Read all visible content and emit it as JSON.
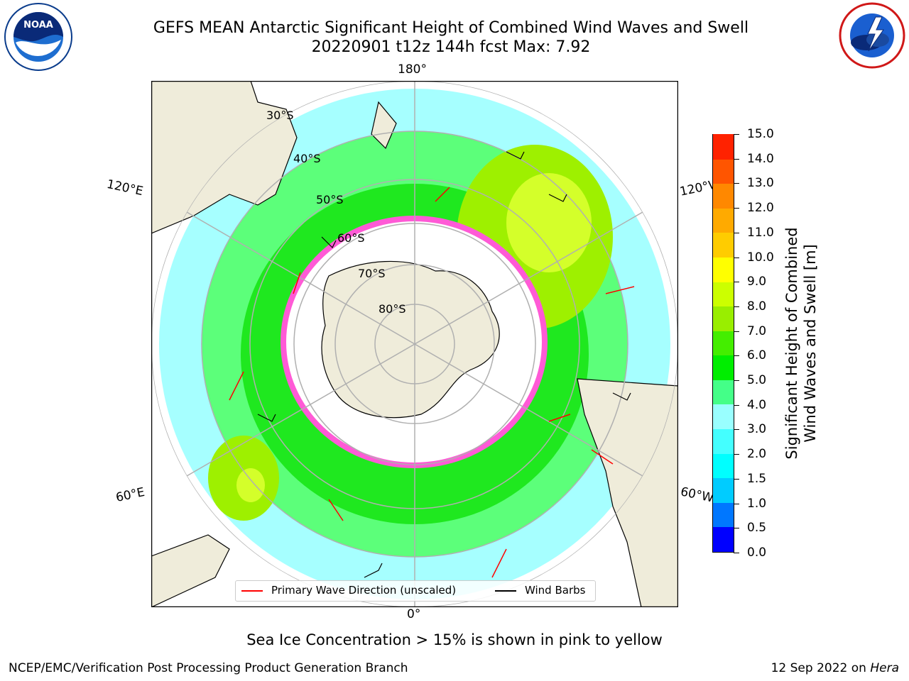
{
  "title": {
    "line1": "GEFS MEAN Antarctic Significant Height of Combined Wind Waves and Swell",
    "line2": "20220901 t12z 144h fcst   Max: 7.92"
  },
  "logos": {
    "left": "noaa-logo",
    "right": "nws-logo"
  },
  "map": {
    "projection": "south-polar-stereographic",
    "longitude_labels": [
      "180°",
      "120°E",
      "120°W",
      "60°E",
      "60°W",
      "0°"
    ],
    "latitude_labels": [
      "30°S",
      "40°S",
      "50°S",
      "60°S",
      "70°S",
      "80°S"
    ],
    "colors": {
      "land": "#efecda",
      "sea_ice": "#ffffff",
      "ice_edge": "#ff33cc",
      "graticule": "#b0b0b0",
      "wave_direction": "#ff0000",
      "wind_barb": "#000000"
    }
  },
  "colorbar": {
    "title_line1": "Significant Height of Combined",
    "title_line2": "Wind Waves and Swell [m]",
    "tick_labels": [
      "0.0",
      "0.5",
      "1.0",
      "1.5",
      "2.0",
      "3.0",
      "4.0",
      "5.0",
      "6.0",
      "7.0",
      "8.0",
      "9.0",
      "10.0",
      "11.0",
      "12.0",
      "13.0",
      "14.0",
      "15.0"
    ],
    "colors": [
      "#0000ff",
      "#0077ff",
      "#00ccff",
      "#00ffff",
      "#44ffff",
      "#99ffff",
      "#44ff88",
      "#00ee00",
      "#44ee00",
      "#99ee00",
      "#ccff00",
      "#ffff00",
      "#ffcc00",
      "#ffaa00",
      "#ff8800",
      "#ff5500",
      "#ff2200"
    ]
  },
  "legend": {
    "wave_label": "Primary Wave Direction (unscaled)",
    "barb_label": "Wind Barbs"
  },
  "note": "Sea Ice Concentration > 15% is shown in pink to yellow",
  "footer": {
    "left": "NCEP/EMC/Verification Post Processing Product Generation Branch",
    "right_date": "12 Sep 2022 on ",
    "right_host": "Hera"
  }
}
